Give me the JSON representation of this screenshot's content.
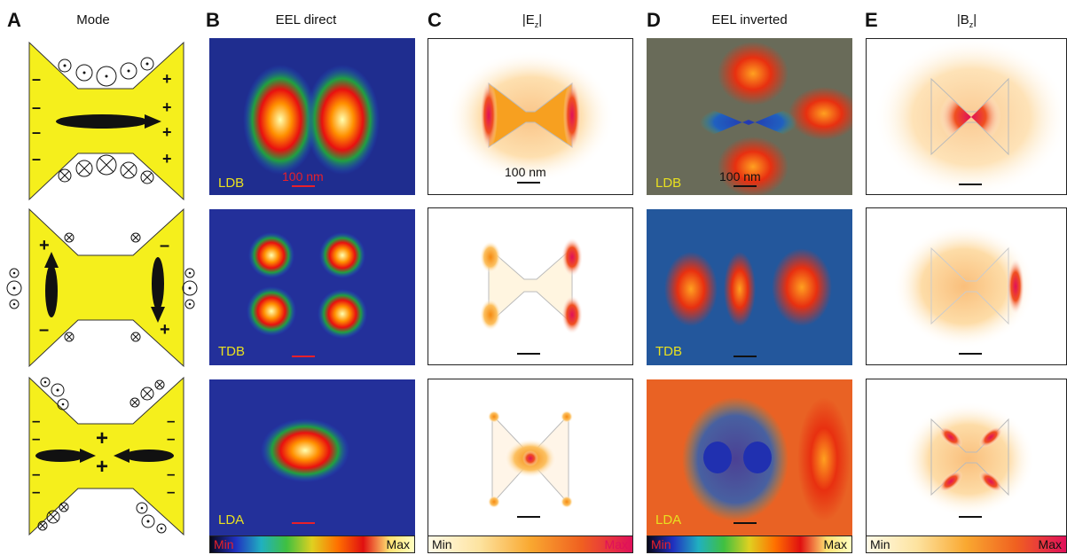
{
  "panels": {
    "A": {
      "letter": "A",
      "title": "Mode"
    },
    "B": {
      "letter": "B",
      "title": "EEL direct"
    },
    "C": {
      "letter": "C",
      "title": "|E_z|"
    },
    "D": {
      "letter": "D",
      "title": "EEL inverted"
    },
    "E": {
      "letter": "E",
      "title": "|B_z|"
    }
  },
  "rows": [
    {
      "mode": "LDB"
    },
    {
      "mode": "TDB"
    },
    {
      "mode": "LDA"
    }
  ],
  "scalebars": {
    "direct": "100 nm",
    "ez": "100 nm",
    "inverted": "100 nm"
  },
  "colorbars": {
    "direct": {
      "min": "Min",
      "max": "Max"
    },
    "ez": {
      "min": "Min",
      "max": "Max"
    },
    "inverted": {
      "min": "Min",
      "max": "Max"
    },
    "bz": {
      "min": "Min",
      "max": "Max"
    }
  },
  "title_parts": {
    "ez_pre": "|E",
    "ez_sub": "z",
    "ez_post": "|",
    "bz_pre": "|B",
    "bz_sub": "z",
    "bz_post": "|"
  },
  "colors": {
    "bowtie_fill": "#f5ef1c",
    "label_yellow": "#e8e020",
    "scalebar_red": "#e8202a"
  }
}
